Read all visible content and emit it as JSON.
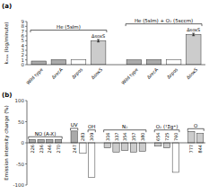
{
  "chart_data": [
    {
      "type": "bar",
      "title": "(a)",
      "y_label": "kₘₐₓ (log/minute)",
      "categories": [
        "Wild type",
        "ΔrecA",
        "Δrpos",
        "ΔsoxS",
        "Wild type",
        "ΔrecA",
        "Δrpos",
        "ΔsoxS"
      ],
      "values": [
        0.75,
        1.05,
        1.0,
        5.0,
        1.0,
        1.05,
        1.0,
        6.3
      ],
      "errors": [
        null,
        null,
        null,
        0.25,
        null,
        null,
        null,
        0.25
      ],
      "colors": [
        "#aaaaaa",
        "#aaaaaa",
        "white",
        "#cccccc",
        "#aaaaaa",
        "#aaaaaa",
        "white",
        "#cccccc"
      ],
      "groups": [
        {
          "label": "He (5slm)",
          "start": 0,
          "end": 3
        },
        {
          "label": "He (5slm) + O₂ (5sccm)",
          "start": 4,
          "end": 7
        }
      ],
      "annotations": [
        {
          "text": "ΔsoxS",
          "category": 3
        },
        {
          "text": "ΔsoxS",
          "category": 7
        }
      ],
      "ylim": [
        0,
        9
      ],
      "yticks": [
        0,
        1,
        2,
        3,
        4,
        5,
        6,
        7,
        8,
        9
      ]
    },
    {
      "type": "bar",
      "title": "(b)",
      "y_label": "Emission intensity change (%)",
      "categories": [
        "226",
        "236",
        "246",
        "270",
        "247",
        "283",
        "309",
        "316",
        "337",
        "354",
        "357",
        "380",
        "654",
        "725",
        "760",
        "777",
        "844"
      ],
      "values": [
        8,
        8,
        8,
        8,
        28,
        -25,
        -82,
        -12,
        -22,
        -18,
        -22,
        -20,
        -8,
        -12,
        -70,
        27,
        22
      ],
      "colors": [
        "#aaaaaa",
        "#aaaaaa",
        "#aaaaaa",
        "#aaaaaa",
        "#aaaaaa",
        "white",
        "white",
        "#cccccc",
        "#cccccc",
        "#cccccc",
        "#cccccc",
        "#cccccc",
        "#cccccc",
        "#cccccc",
        "white",
        "#cccccc",
        "#cccccc"
      ],
      "groups": [
        {
          "label": "NO (A-X)",
          "start": 0,
          "end": 3
        },
        {
          "label": "UV",
          "start": 4,
          "end": 4
        },
        {
          "label": "OH",
          "start": 6,
          "end": 6
        },
        {
          "label": "N₂",
          "start": 7,
          "end": 11
        },
        {
          "label": "O₂ (¹Σg⁺)",
          "start": 12,
          "end": 14
        },
        {
          "label": "O",
          "start": 15,
          "end": 16
        }
      ],
      "ylim": [
        -100,
        100
      ],
      "yticks": [
        -100,
        -50,
        0,
        50,
        100
      ]
    }
  ]
}
